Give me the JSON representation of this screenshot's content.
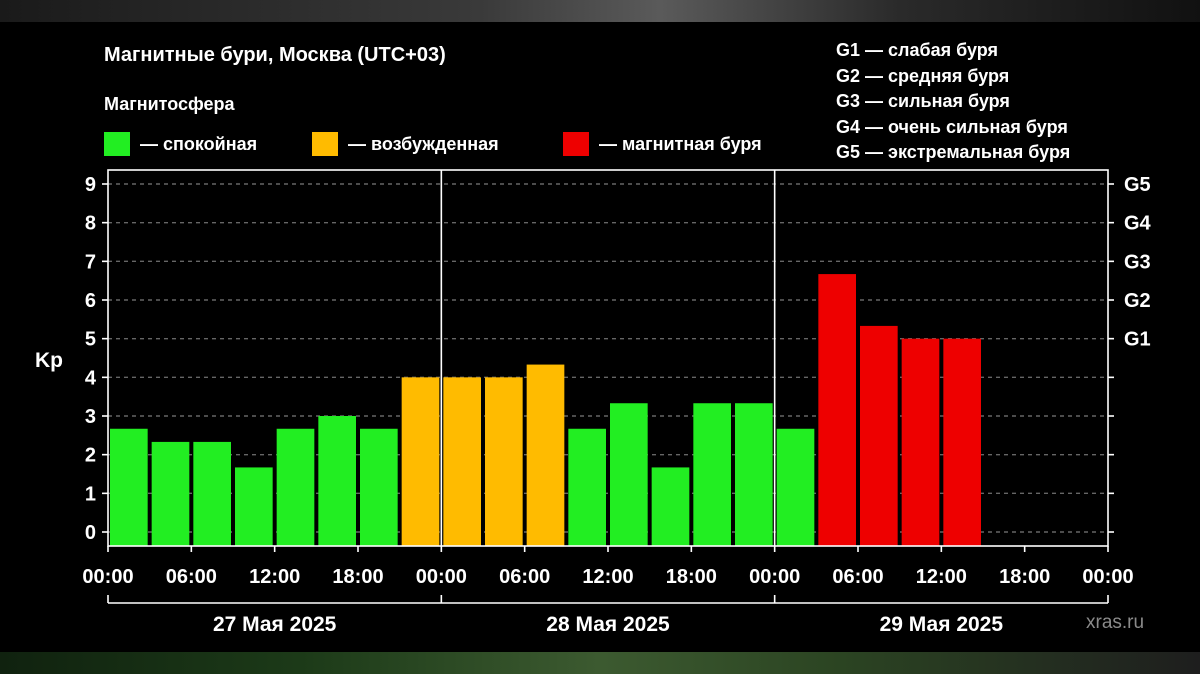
{
  "header": {
    "title": "Магнитные бури, Москва (UTC+03)",
    "subtitle": "Магнитосфера"
  },
  "legend": [
    {
      "label": "— спокойная",
      "color": "#22ee22"
    },
    {
      "label": "— возбужденная",
      "color": "#ffbb00"
    },
    {
      "label": "— магнитная буря",
      "color": "#ee0000"
    }
  ],
  "g_legend": [
    "G1 — слабая буря",
    "G2 — средняя буря",
    "G3 — сильная буря",
    "G4 — очень сильная буря",
    "G5 — экстремальная буря"
  ],
  "watermark": "xras.ru",
  "chart_data": {
    "type": "bar",
    "ylabel": "Kp",
    "ylim": [
      0,
      9
    ],
    "y_ticks": [
      "0",
      "1",
      "2",
      "3",
      "4",
      "5",
      "6",
      "7",
      "8",
      "9"
    ],
    "right_axis_labels": [
      {
        "kp": 5,
        "label": "G1"
      },
      {
        "kp": 6,
        "label": "G2"
      },
      {
        "kp": 7,
        "label": "G3"
      },
      {
        "kp": 8,
        "label": "G4"
      },
      {
        "kp": 9,
        "label": "G5"
      }
    ],
    "x_tick_labels": [
      "00:00",
      "06:00",
      "12:00",
      "18:00",
      "00:00",
      "06:00",
      "12:00",
      "18:00",
      "00:00",
      "06:00",
      "12:00",
      "18:00",
      "00:00"
    ],
    "days": [
      "27 Мая 2025",
      "28 Мая 2025",
      "29 Мая 2025"
    ],
    "interval_hours": 3,
    "values": [
      2.67,
      2.33,
      2.33,
      1.67,
      2.67,
      3.0,
      2.67,
      4.0,
      4.0,
      4.0,
      4.33,
      2.67,
      3.33,
      1.67,
      3.33,
      3.33,
      2.67,
      6.67,
      5.33,
      5.0,
      5.0
    ],
    "levels": [
      "quiet",
      "quiet",
      "quiet",
      "quiet",
      "quiet",
      "quiet",
      "quiet",
      "active",
      "active",
      "active",
      "active",
      "quiet",
      "quiet",
      "quiet",
      "quiet",
      "quiet",
      "quiet",
      "storm",
      "storm",
      "storm",
      "storm"
    ],
    "level_colors": {
      "quiet": "#22ee22",
      "active": "#ffbb00",
      "storm": "#ee0000"
    },
    "grid": true
  }
}
